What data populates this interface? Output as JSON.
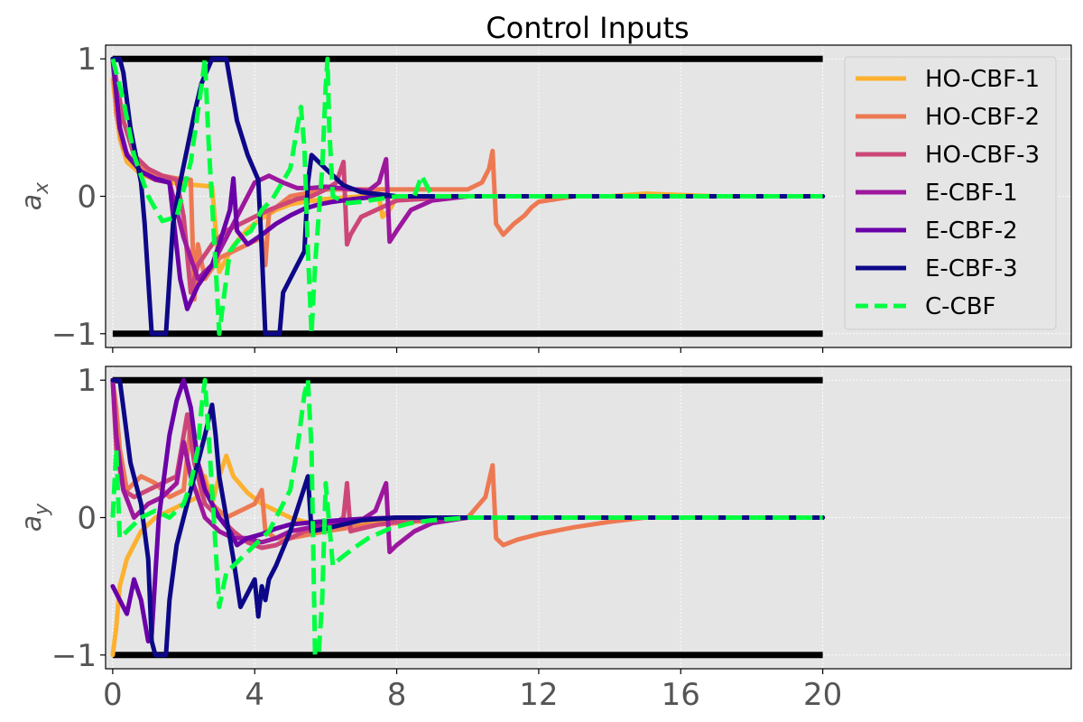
{
  "figure_title": "Control Inputs",
  "colors": {
    "panel_bg": "#e5e5e5",
    "grid": "#ffffff",
    "bound": "#000000",
    "tick_text": "#555555"
  },
  "chart_data": [
    {
      "type": "line",
      "title": "Control Inputs",
      "ylabel": "a_x",
      "ylabel_main": "a",
      "ylabel_sub": "x",
      "xlim": [
        -0.2,
        27
      ],
      "ylim": [
        -1.1,
        1.1
      ],
      "x_ticks": [
        0,
        4,
        8,
        12,
        16,
        20
      ],
      "x_tick_labels": [],
      "y_ticks": [
        1,
        0,
        -1
      ],
      "y_tick_labels": [
        "1",
        "0",
        "−1"
      ],
      "grid": true,
      "legend": "top-right",
      "bounds": [
        {
          "y": 1,
          "x": [
            0,
            20
          ]
        },
        {
          "y": -1,
          "x": [
            0,
            20
          ]
        }
      ],
      "series": [
        {
          "name": "HO-CBF-1",
          "color": "#fcb130",
          "dash": false,
          "x": [
            0,
            0.2,
            0.4,
            0.8,
            1.2,
            1.6,
            2.0,
            2.4,
            2.8,
            3.0,
            3.4,
            3.8,
            4.2,
            4.6,
            5.0,
            5.4,
            6.0,
            7.0,
            7.5,
            7.6,
            7.8,
            8.0,
            8.5,
            10,
            12,
            14,
            15,
            17,
            20
          ],
          "y": [
            0.85,
            0.42,
            0.25,
            0.16,
            0.12,
            0.1,
            0.09,
            0.08,
            0.07,
            -0.55,
            -0.36,
            -0.24,
            -0.16,
            -0.1,
            -0.06,
            -0.04,
            -0.02,
            0.0,
            0.0,
            -0.15,
            -0.1,
            0.0,
            0.0,
            0.0,
            0.0,
            0.0,
            0.02,
            0.0,
            0.0
          ]
        },
        {
          "name": "HO-CBF-2",
          "color": "#ed7953",
          "dash": false,
          "x": [
            0,
            0.1,
            0.3,
            0.6,
            1.0,
            1.4,
            1.8,
            2.2,
            2.3,
            2.4,
            2.6,
            3.0,
            3.4,
            3.8,
            4.2,
            4.3,
            4.4,
            5.0,
            6.0,
            8.0,
            10.0,
            10.4,
            10.6,
            10.7,
            10.8,
            11.0,
            11.3,
            11.6,
            11.8,
            12.0,
            13,
            20
          ],
          "y": [
            1.0,
            0.6,
            0.35,
            0.24,
            0.18,
            0.15,
            0.13,
            0.12,
            -0.75,
            -0.35,
            -0.6,
            -0.45,
            -0.4,
            -0.35,
            -0.3,
            -0.5,
            -0.12,
            0.0,
            0.05,
            0.05,
            0.05,
            0.1,
            0.2,
            0.33,
            -0.2,
            -0.28,
            -0.2,
            -0.14,
            -0.08,
            -0.04,
            0.0,
            0.0
          ]
        },
        {
          "name": "HO-CBF-3",
          "color": "#cc4778",
          "dash": false,
          "x": [
            0,
            0.3,
            0.6,
            1.0,
            1.4,
            1.8,
            2.0,
            2.2,
            2.4,
            2.8,
            3.2,
            3.6,
            4.0,
            4.4,
            4.8,
            5.2,
            5.6,
            6.0,
            6.3,
            6.5,
            6.6,
            6.7,
            7.0,
            8.0,
            10,
            20
          ],
          "y": [
            1.0,
            0.55,
            0.3,
            0.2,
            0.15,
            0.12,
            -0.15,
            -0.7,
            -0.5,
            -0.35,
            -0.25,
            -0.2,
            -0.15,
            -0.1,
            -0.06,
            -0.02,
            0.0,
            0.05,
            0.1,
            0.25,
            -0.35,
            -0.28,
            -0.15,
            -0.03,
            0.0,
            0.0
          ]
        },
        {
          "name": "E-CBF-1",
          "color": "#9c179e",
          "dash": false,
          "x": [
            0,
            0.2,
            0.4,
            0.8,
            1.2,
            1.6,
            2.0,
            2.4,
            2.8,
            3.2,
            3.6,
            4.0,
            4.4,
            4.8,
            5.2,
            5.6,
            6.0,
            6.4,
            6.8,
            7.2,
            7.5,
            7.7,
            7.8,
            8.0,
            8.4,
            9.0,
            10,
            20
          ],
          "y": [
            1.0,
            0.5,
            0.3,
            0.18,
            0.12,
            0.1,
            -0.3,
            -0.6,
            -0.5,
            -0.3,
            -0.1,
            0.1,
            0.15,
            0.1,
            0.06,
            0.06,
            0.07,
            0.06,
            0.05,
            0.04,
            0.1,
            0.27,
            -0.33,
            -0.25,
            -0.1,
            -0.03,
            0.0,
            0.0
          ]
        },
        {
          "name": "E-CBF-2",
          "color": "#6a00a8",
          "dash": false,
          "x": [
            0,
            0.2,
            0.4,
            0.8,
            1.2,
            1.6,
            1.9,
            2.1,
            2.4,
            2.8,
            3.0,
            3.3,
            3.4,
            3.5,
            3.8,
            4.2,
            4.6,
            5.0,
            5.4,
            5.8,
            6.2,
            6.8,
            7.5,
            8.5,
            10,
            20
          ],
          "y": [
            1.0,
            0.5,
            0.3,
            0.18,
            0.13,
            0.1,
            -0.6,
            -0.82,
            -0.65,
            -0.5,
            -0.35,
            -0.1,
            0.13,
            -0.25,
            -0.35,
            -0.28,
            -0.2,
            -0.14,
            -0.09,
            -0.06,
            -0.04,
            -0.02,
            0.0,
            0.0,
            0.0,
            0.0
          ]
        },
        {
          "name": "E-CBF-3",
          "color": "#0d0887",
          "dash": false,
          "x": [
            0,
            0.2,
            0.3,
            0.5,
            0.8,
            0.9,
            1.1,
            1.5,
            1.6,
            1.7,
            1.9,
            2.1,
            2.3,
            2.5,
            2.8,
            3.2,
            3.5,
            3.8,
            4.1,
            4.2,
            4.3,
            4.7,
            4.8,
            5.2,
            5.4,
            5.5,
            5.6,
            6.0,
            6.5,
            7,
            8,
            9,
            10,
            20
          ],
          "y": [
            1.0,
            1.0,
            0.9,
            0.5,
            0.1,
            -0.2,
            -1.0,
            -1.0,
            -0.6,
            -0.2,
            0.1,
            0.35,
            0.6,
            0.82,
            1.0,
            1.0,
            0.55,
            0.3,
            0.12,
            -0.4,
            -1.0,
            -1.0,
            -0.7,
            -0.5,
            -0.4,
            0.1,
            0.3,
            0.2,
            0.08,
            0.03,
            0.0,
            0.0,
            0.0,
            0.0
          ]
        },
        {
          "name": "C-CBF",
          "color": "#00ff41",
          "dash": true,
          "x": [
            0,
            0.3,
            0.6,
            1.0,
            1.4,
            1.8,
            2.2,
            2.5,
            2.6,
            2.7,
            2.9,
            3.0,
            3.1,
            3.3,
            3.6,
            3.9,
            4.2,
            4.5,
            5.0,
            5.2,
            5.3,
            5.4,
            5.5,
            5.6,
            5.7,
            5.9,
            6.0,
            6.05,
            6.1,
            6.2,
            6.6,
            7.0,
            7.5,
            8.0,
            8.5,
            8.7,
            9,
            10,
            20
          ],
          "y": [
            1.0,
            0.7,
            0.3,
            0.0,
            -0.18,
            -0.15,
            0.25,
            0.8,
            1.0,
            0.4,
            -0.5,
            -1.0,
            -0.8,
            -0.4,
            -0.3,
            -0.25,
            -0.1,
            -0.02,
            0.2,
            0.5,
            0.65,
            0.35,
            -0.4,
            -1.0,
            -0.5,
            0.2,
            0.8,
            1.0,
            0.5,
            0.0,
            -0.05,
            -0.04,
            -0.02,
            0.0,
            0.0,
            0.15,
            0.0,
            0.0,
            0.0
          ]
        }
      ]
    },
    {
      "type": "line",
      "title": "",
      "ylabel": "a_y",
      "ylabel_main": "a",
      "ylabel_sub": "y",
      "xlim": [
        -0.2,
        27
      ],
      "ylim": [
        -1.1,
        1.1
      ],
      "x_ticks": [
        0,
        4,
        8,
        12,
        16,
        20
      ],
      "x_tick_labels": [
        "0",
        "4",
        "8",
        "12",
        "16",
        "20"
      ],
      "y_ticks": [
        1,
        0,
        -1
      ],
      "y_tick_labels": [
        "1",
        "0",
        "−1"
      ],
      "grid": true,
      "legend": "none",
      "bounds": [
        {
          "y": 1,
          "x": [
            0,
            20
          ]
        },
        {
          "y": -1,
          "x": [
            0,
            20
          ]
        }
      ],
      "series": [
        {
          "name": "HO-CBF-1",
          "color": "#fcb130",
          "dash": false,
          "x": [
            0,
            0.1,
            0.2,
            0.4,
            0.8,
            1.2,
            1.6,
            2.0,
            2.4,
            2.6,
            2.8,
            3.0,
            3.2,
            3.4,
            3.8,
            4.2,
            4.6,
            5.0,
            5.4,
            5.8,
            6.2,
            7,
            8,
            10,
            20
          ],
          "y": [
            -1.0,
            -0.8,
            -0.5,
            -0.3,
            -0.1,
            0.0,
            0.05,
            0.1,
            0.15,
            0.3,
            0.1,
            0.3,
            0.45,
            0.3,
            0.18,
            0.1,
            0.05,
            0.0,
            -0.03,
            -0.05,
            -0.05,
            -0.03,
            -0.01,
            0.0,
            0.0
          ]
        },
        {
          "name": "HO-CBF-2",
          "color": "#ed7953",
          "dash": false,
          "x": [
            0,
            0.1,
            0.2,
            0.4,
            0.8,
            1.2,
            1.6,
            2.0,
            2.2,
            2.4,
            2.8,
            3.2,
            3.6,
            4.0,
            4.2,
            4.3,
            4.6,
            5.0,
            6.0,
            7.0,
            8.0,
            9.0,
            10.0,
            10.5,
            10.7,
            10.8,
            11.0,
            11.4,
            12,
            13,
            14,
            15,
            20
          ],
          "y": [
            1.0,
            0.8,
            0.5,
            0.2,
            0.3,
            0.25,
            0.15,
            0.2,
            0.7,
            0.4,
            0.1,
            0.0,
            0.05,
            0.1,
            0.2,
            -0.1,
            -0.15,
            -0.15,
            -0.1,
            -0.06,
            -0.04,
            -0.02,
            0.0,
            0.15,
            0.38,
            -0.15,
            -0.2,
            -0.16,
            -0.12,
            -0.07,
            -0.03,
            0.0,
            0.0
          ]
        },
        {
          "name": "HO-CBF-3",
          "color": "#cc4778",
          "dash": false,
          "x": [
            0,
            0.1,
            0.3,
            0.6,
            1.0,
            1.4,
            1.8,
            2.1,
            2.3,
            2.6,
            3.0,
            3.4,
            3.8,
            4.2,
            4.6,
            5.0,
            5.4,
            5.8,
            6.2,
            6.5,
            6.6,
            6.7,
            7.0,
            7.5,
            8,
            9,
            10,
            20
          ],
          "y": [
            1.0,
            0.5,
            0.2,
            0.15,
            0.2,
            0.25,
            0.3,
            0.75,
            0.4,
            0.1,
            0.0,
            -0.1,
            -0.18,
            -0.22,
            -0.2,
            -0.15,
            -0.1,
            -0.08,
            -0.05,
            0.0,
            0.25,
            -0.1,
            -0.08,
            -0.05,
            -0.03,
            -0.01,
            0.0,
            0.0
          ]
        },
        {
          "name": "E-CBF-1",
          "color": "#9c179e",
          "dash": false,
          "x": [
            0,
            0.1,
            0.3,
            0.6,
            1.0,
            1.4,
            1.8,
            2.0,
            2.2,
            2.6,
            3.0,
            3.4,
            3.8,
            4.2,
            4.6,
            5.0,
            5.4,
            5.8,
            6.2,
            6.6,
            7.0,
            7.4,
            7.7,
            7.8,
            8.0,
            8.5,
            9,
            10,
            20
          ],
          "y": [
            1.0,
            0.6,
            0.2,
            0.0,
            0.1,
            0.15,
            0.25,
            0.55,
            0.3,
            0.0,
            -0.1,
            -0.15,
            -0.15,
            -0.18,
            -0.15,
            -0.1,
            -0.08,
            -0.06,
            -0.05,
            -0.04,
            -0.02,
            0.05,
            0.25,
            -0.25,
            -0.2,
            -0.1,
            -0.04,
            0.0,
            0.0
          ]
        },
        {
          "name": "E-CBF-2",
          "color": "#6a00a8",
          "dash": false,
          "x": [
            0,
            0.2,
            0.4,
            0.6,
            0.8,
            1.0,
            1.1,
            1.3,
            1.6,
            1.8,
            2.0,
            2.2,
            2.4,
            2.6,
            2.8,
            3.0,
            3.3,
            3.5,
            3.8,
            4.2,
            4.6,
            5.0,
            5.4,
            5.8,
            6.4,
            7.0,
            8,
            10,
            20
          ],
          "y": [
            -0.5,
            -0.6,
            -0.7,
            -0.45,
            -0.6,
            -0.9,
            -0.85,
            0.0,
            0.6,
            0.85,
            1.0,
            0.8,
            0.4,
            0.2,
            0.1,
            0.0,
            -0.1,
            -0.2,
            -0.15,
            -0.12,
            -0.08,
            -0.05,
            -0.04,
            -0.03,
            -0.02,
            -0.01,
            0.0,
            0.0,
            0.0
          ]
        },
        {
          "name": "E-CBF-3",
          "color": "#0d0887",
          "dash": false,
          "x": [
            0,
            0.2,
            0.3,
            0.5,
            0.8,
            1.0,
            1.1,
            1.2,
            1.5,
            1.6,
            1.8,
            2.0,
            2.2,
            2.4,
            2.6,
            2.8,
            2.9,
            3.0,
            3.2,
            3.4,
            3.6,
            3.8,
            4.0,
            4.1,
            4.2,
            4.3,
            4.4,
            4.6,
            5.0,
            5.5,
            5.6,
            6.0,
            6.5,
            7,
            8,
            10,
            20
          ],
          "y": [
            1.0,
            1.0,
            0.8,
            0.4,
            0.1,
            -0.3,
            -0.9,
            -1.0,
            -1.0,
            -0.6,
            -0.2,
            0.0,
            0.2,
            0.4,
            0.6,
            0.82,
            0.6,
            0.3,
            0.0,
            -0.3,
            -0.65,
            -0.55,
            -0.45,
            -0.72,
            -0.5,
            -0.6,
            -0.45,
            -0.35,
            -0.1,
            0.3,
            -0.1,
            -0.08,
            -0.05,
            -0.02,
            0.0,
            0.0,
            0.0
          ]
        },
        {
          "name": "C-CBF",
          "color": "#00ff41",
          "dash": true,
          "x": [
            0,
            0.1,
            0.2,
            0.4,
            0.8,
            1.2,
            1.6,
            2.0,
            2.2,
            2.4,
            2.5,
            2.6,
            2.7,
            2.8,
            3.0,
            3.2,
            3.6,
            4.0,
            4.4,
            4.8,
            5.0,
            5.2,
            5.4,
            5.5,
            5.6,
            5.7,
            5.8,
            5.9,
            6.0,
            6.2,
            6.4,
            6.8,
            7.2,
            7.8,
            8.4,
            9,
            10,
            20
          ],
          "y": [
            0.0,
            0.5,
            -0.15,
            -0.1,
            0.0,
            0.05,
            0.0,
            0.1,
            0.25,
            0.5,
            0.8,
            1.0,
            0.6,
            0.2,
            -0.65,
            -0.4,
            -0.3,
            -0.2,
            -0.1,
            0.1,
            0.2,
            0.5,
            0.9,
            1.0,
            0.5,
            -1.0,
            -1.0,
            -0.6,
            0.25,
            -0.35,
            -0.3,
            -0.22,
            -0.15,
            -0.08,
            -0.04,
            -0.02,
            0.0,
            0.0
          ]
        }
      ]
    }
  ]
}
